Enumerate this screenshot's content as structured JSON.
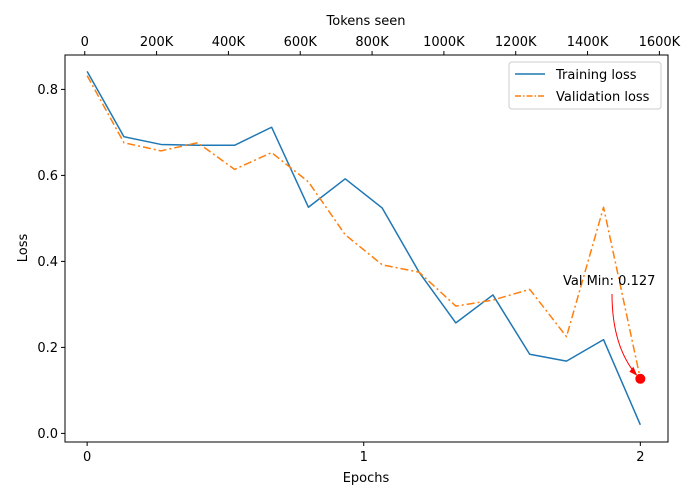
{
  "chart_data": {
    "type": "line",
    "xlabel": "Epochs",
    "ylabel": "Loss",
    "top_xlabel": "Tokens seen",
    "xlim": [
      -0.08,
      2.1
    ],
    "ylim": [
      -0.02,
      0.88
    ],
    "x_ticks": [
      0,
      1,
      2
    ],
    "x_tick_labels": [
      "0",
      "1",
      "2"
    ],
    "y_ticks": [
      0.0,
      0.2,
      0.4,
      0.6,
      0.8
    ],
    "y_tick_labels": [
      "0.0",
      "0.2",
      "0.4",
      "0.6",
      "0.8"
    ],
    "top_ticks": [
      0,
      200000,
      400000,
      600000,
      800000,
      1000000,
      1200000,
      1400000,
      1600000
    ],
    "top_tick_labels": [
      "0",
      "200K",
      "400K",
      "600K",
      "800K",
      "1000K",
      "1200K",
      "1400K",
      "1600K"
    ],
    "top_xlim": [
      -55000,
      1624000
    ],
    "x": [
      0,
      0.133,
      0.267,
      0.4,
      0.533,
      0.667,
      0.8,
      0.933,
      1.067,
      1.2,
      1.333,
      1.467,
      1.6,
      1.733,
      1.867,
      2.0
    ],
    "series": [
      {
        "name": "Training loss",
        "color": "#1f77b4",
        "style": "solid",
        "values": [
          0.842,
          0.69,
          0.672,
          0.67,
          0.67,
          0.712,
          0.526,
          0.592,
          0.524,
          0.375,
          0.257,
          0.322,
          0.184,
          0.168,
          0.218,
          0.02
        ]
      },
      {
        "name": "Validation loss",
        "color": "#ff7f0e",
        "style": "dashdot",
        "values": [
          0.832,
          0.676,
          0.657,
          0.676,
          0.614,
          0.653,
          0.585,
          0.462,
          0.392,
          0.375,
          0.296,
          0.31,
          0.335,
          0.225,
          0.526,
          0.127
        ]
      }
    ],
    "annotation": {
      "text": "Val Min: 0.127",
      "x": 2.0,
      "y": 0.127,
      "color": "#ff0000"
    },
    "legend": {
      "position": "top-right",
      "entries": [
        "Training loss",
        "Validation loss"
      ]
    },
    "grid": false
  }
}
